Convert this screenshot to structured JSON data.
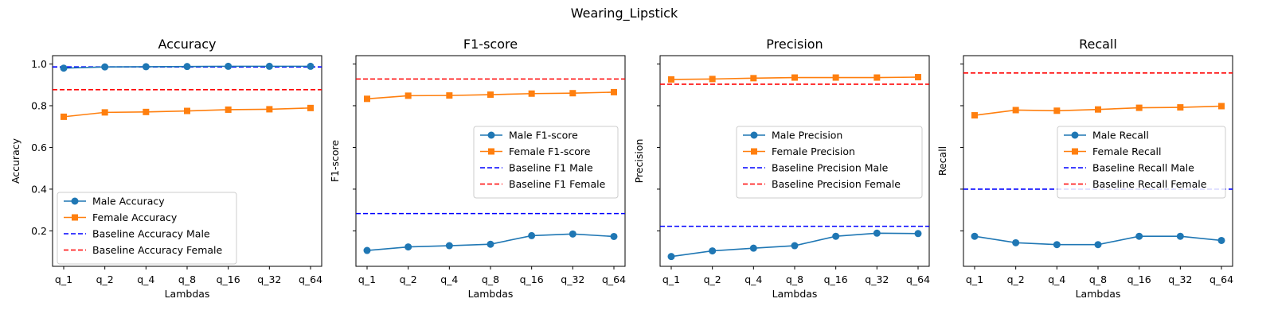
{
  "suptitle": "Wearing_Lipstick",
  "colors": {
    "male": "#1f77b4",
    "female": "#ff7f0e",
    "baseline_male": "#0000ff",
    "baseline_female": "#ff0000"
  },
  "chart_data": [
    {
      "type": "line",
      "title": "Accuracy",
      "xlabel": "Lambdas",
      "ylabel": "Accuracy",
      "categories": [
        "q_1",
        "q_2",
        "q_4",
        "q_8",
        "q_16",
        "q_32",
        "q_64"
      ],
      "ylim": [
        0.03,
        1.04
      ],
      "yticks": [
        0.2,
        0.4,
        0.6,
        0.8,
        1.0
      ],
      "ytick_labels": [
        "0.2",
        "0.4",
        "0.6",
        "0.8",
        "1.0"
      ],
      "grid": false,
      "legend_position": "lower-left",
      "series": [
        {
          "name": "Male Accuracy",
          "marker": "circle",
          "color": "#1f77b4",
          "values": [
            0.98,
            0.986,
            0.987,
            0.988,
            0.989,
            0.989,
            0.989
          ]
        },
        {
          "name": "Female Accuracy",
          "marker": "square",
          "color": "#ff7f0e",
          "values": [
            0.747,
            0.768,
            0.77,
            0.775,
            0.781,
            0.783,
            0.789
          ]
        }
      ],
      "baselines": [
        {
          "name": "Baseline Accuracy Male",
          "color": "#0000ff",
          "value": 0.986
        },
        {
          "name": "Baseline Accuracy Female",
          "color": "#ff0000",
          "value": 0.877
        }
      ]
    },
    {
      "type": "line",
      "title": "F1-score",
      "xlabel": "Lambdas",
      "ylabel": "F1-score",
      "categories": [
        "q_1",
        "q_2",
        "q_4",
        "q_8",
        "q_16",
        "q_32",
        "q_64"
      ],
      "ylim": [
        0.03,
        1.04
      ],
      "yticks": [
        0.2,
        0.4,
        0.6,
        0.8,
        1.0
      ],
      "ytick_labels": [
        "",
        "",
        "",
        "",
        ""
      ],
      "grid": false,
      "legend_position": "center-right",
      "series": [
        {
          "name": "Male F1-score",
          "marker": "circle",
          "color": "#1f77b4",
          "values": [
            0.106,
            0.123,
            0.129,
            0.136,
            0.177,
            0.185,
            0.173
          ]
        },
        {
          "name": "Female F1-score",
          "marker": "square",
          "color": "#ff7f0e",
          "values": [
            0.833,
            0.848,
            0.849,
            0.853,
            0.858,
            0.86,
            0.865
          ]
        }
      ],
      "baselines": [
        {
          "name": "Baseline F1 Male",
          "color": "#0000ff",
          "value": 0.283
        },
        {
          "name": "Baseline F1 Female",
          "color": "#ff0000",
          "value": 0.928
        }
      ]
    },
    {
      "type": "line",
      "title": "Precision",
      "xlabel": "Lambdas",
      "ylabel": "Precision",
      "categories": [
        "q_1",
        "q_2",
        "q_4",
        "q_8",
        "q_16",
        "q_32",
        "q_64"
      ],
      "ylim": [
        0.03,
        1.04
      ],
      "yticks": [
        0.2,
        0.4,
        0.6,
        0.8,
        1.0
      ],
      "ytick_labels": [
        "",
        "",
        "",
        "",
        ""
      ],
      "grid": false,
      "legend_position": "center-right",
      "series": [
        {
          "name": "Male Precision",
          "marker": "circle",
          "color": "#1f77b4",
          "values": [
            0.077,
            0.104,
            0.117,
            0.129,
            0.174,
            0.189,
            0.187
          ]
        },
        {
          "name": "Female Precision",
          "marker": "square",
          "color": "#ff7f0e",
          "values": [
            0.926,
            0.928,
            0.932,
            0.935,
            0.935,
            0.935,
            0.937
          ]
        }
      ],
      "baselines": [
        {
          "name": "Baseline Precision Male",
          "color": "#0000ff",
          "value": 0.222
        },
        {
          "name": "Baseline Precision Female",
          "color": "#ff0000",
          "value": 0.903
        }
      ]
    },
    {
      "type": "line",
      "title": "Recall",
      "xlabel": "Lambdas",
      "ylabel": "Recall",
      "categories": [
        "q_1",
        "q_2",
        "q_4",
        "q_8",
        "q_16",
        "q_32",
        "q_64"
      ],
      "ylim": [
        0.03,
        1.04
      ],
      "yticks": [
        0.2,
        0.4,
        0.6,
        0.8,
        1.0
      ],
      "ytick_labels": [
        "",
        "",
        "",
        "",
        ""
      ],
      "grid": false,
      "legend_position": "center-right",
      "series": [
        {
          "name": "Male Recall",
          "marker": "circle",
          "color": "#1f77b4",
          "values": [
            0.174,
            0.143,
            0.134,
            0.134,
            0.174,
            0.174,
            0.154
          ]
        },
        {
          "name": "Female Recall",
          "marker": "square",
          "color": "#ff7f0e",
          "values": [
            0.754,
            0.779,
            0.776,
            0.782,
            0.79,
            0.792,
            0.798
          ]
        }
      ],
      "baselines": [
        {
          "name": "Baseline Recall Male",
          "color": "#0000ff",
          "value": 0.4
        },
        {
          "name": "Baseline Recall Female",
          "color": "#ff0000",
          "value": 0.957
        }
      ]
    }
  ]
}
